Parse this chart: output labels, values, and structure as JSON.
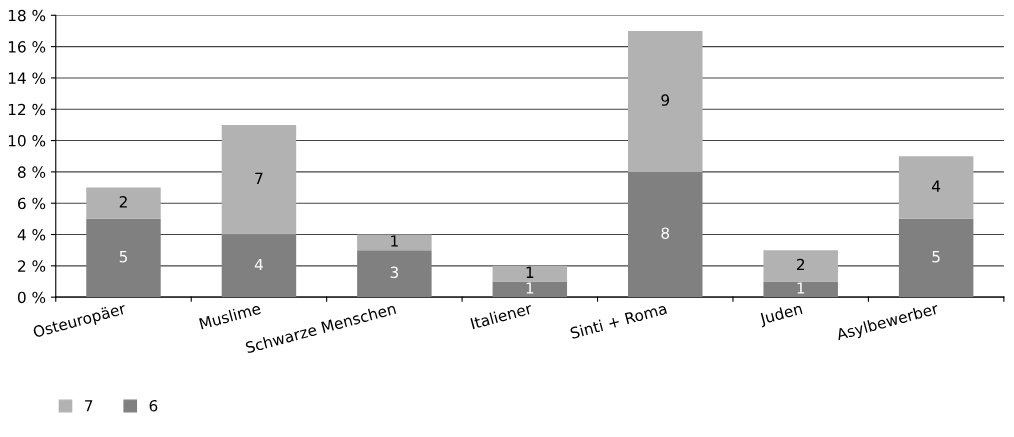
{
  "chart_data": {
    "type": "bar",
    "stacked": true,
    "categories": [
      "Osteuropäer",
      "Muslime",
      "Schwarze Menschen",
      "Italiener",
      "Sinti + Roma",
      "Juden",
      "Asylbewerber"
    ],
    "series": [
      {
        "name": "6",
        "color": "#808080",
        "values": [
          5,
          4,
          3,
          1,
          8,
          1,
          5
        ]
      },
      {
        "name": "7",
        "color": "#b2b2b2",
        "values": [
          2,
          7,
          1,
          1,
          9,
          2,
          4
        ]
      }
    ],
    "ylim": [
      0,
      18
    ],
    "yticks": [
      {
        "value": 0,
        "label": "0 %"
      },
      {
        "value": 2,
        "label": "2 %"
      },
      {
        "value": 4,
        "label": "4 %"
      },
      {
        "value": 6,
        "label": "6 %"
      },
      {
        "value": 8,
        "label": "8 %"
      },
      {
        "value": 10,
        "label": "10 %"
      },
      {
        "value": 12,
        "label": "12 %"
      },
      {
        "value": 14,
        "label": "14 %"
      },
      {
        "value": 16,
        "label": "16 %"
      },
      {
        "value": 18,
        "label": "18 %"
      }
    ],
    "grid": "y",
    "legend": "bottom left",
    "data_labels": true
  }
}
